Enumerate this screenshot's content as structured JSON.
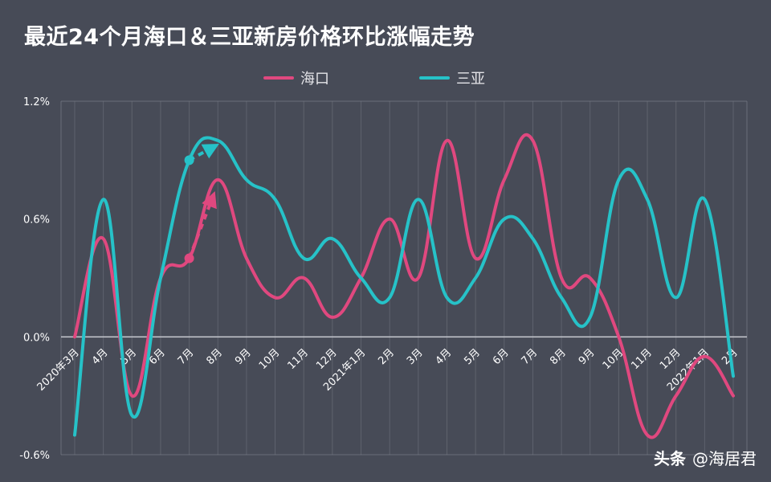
{
  "title": "最近24个月海口＆三亚新房价格环比涨幅走势",
  "credit": {
    "brand": "头条",
    "handle": "@海居君"
  },
  "colors": {
    "haikou": "#e0487f",
    "sanya": "#26c2c8",
    "background": "#474b57",
    "grid": "#7a7e88"
  },
  "chart_data": {
    "type": "line",
    "title": "最近24个月海口＆三亚新房价格环比涨幅走势",
    "categories": [
      "2020年3月",
      "4月",
      "5月",
      "6月",
      "7月",
      "8月",
      "9月",
      "10月",
      "11月",
      "12月",
      "2021年1月",
      "2月",
      "3月",
      "4月",
      "5月",
      "6月",
      "7月",
      "8月",
      "9月",
      "10月",
      "11月",
      "12月",
      "2022年1月",
      "2月"
    ],
    "ylim": [
      -0.6,
      1.2
    ],
    "yticks": [
      "-0.6%",
      "0.0%",
      "0.6%",
      "1.2%"
    ],
    "ytick_values": [
      -0.6,
      0.0,
      0.6,
      1.2
    ],
    "series": [
      {
        "name": "海口",
        "color": "#e0487f",
        "values": [
          0.0,
          0.5,
          -0.3,
          0.3,
          0.4,
          0.8,
          0.4,
          0.2,
          0.3,
          0.1,
          0.3,
          0.6,
          0.3,
          1.0,
          0.4,
          0.8,
          1.0,
          0.3,
          0.3,
          0.0,
          -0.5,
          -0.3,
          -0.1,
          -0.3
        ]
      },
      {
        "name": "三亚",
        "color": "#26c2c8",
        "values": [
          -0.5,
          0.7,
          -0.4,
          0.3,
          0.9,
          1.0,
          0.8,
          0.7,
          0.4,
          0.5,
          0.3,
          0.2,
          0.7,
          0.2,
          0.3,
          0.6,
          0.5,
          0.2,
          0.1,
          0.8,
          0.7,
          0.2,
          0.7,
          -0.2
        ]
      }
    ],
    "grid": true,
    "legend_position": "top-center",
    "annotations": [
      {
        "type": "dashed-arrow",
        "series": "海口",
        "from_index": 4,
        "to_index": 5
      },
      {
        "type": "dashed-arrow",
        "series": "三亚",
        "from_index": 4,
        "to_index": 5
      }
    ]
  }
}
